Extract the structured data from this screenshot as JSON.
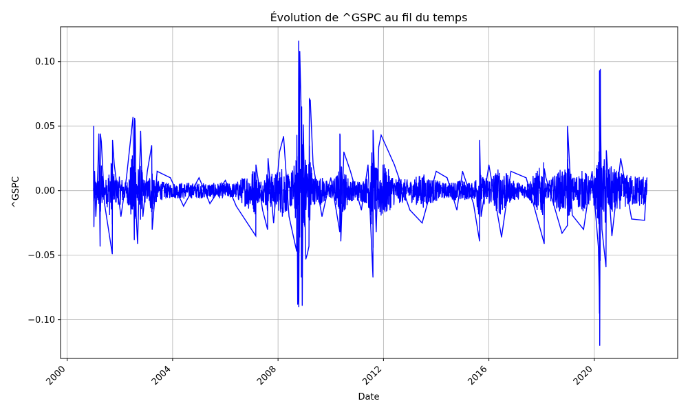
{
  "chart_data": {
    "type": "line",
    "title": "Évolution de ^GSPC au fil du temps",
    "xlabel": "Date",
    "ylabel": "^GSPC",
    "xlim": [
      "1999-10-01",
      "2023-03-01"
    ],
    "ylim": [
      -0.13,
      0.127
    ],
    "grid": true,
    "legend": "none",
    "x_ticks": [
      {
        "value": "2000-01-01",
        "label": "2000"
      },
      {
        "value": "2004-01-01",
        "label": "2004"
      },
      {
        "value": "2008-01-01",
        "label": "2008"
      },
      {
        "value": "2012-01-01",
        "label": "2012"
      },
      {
        "value": "2016-01-01",
        "label": "2016"
      },
      {
        "value": "2020-01-01",
        "label": "2020"
      }
    ],
    "y_ticks": [
      {
        "value": 0.1,
        "label": "0.10"
      },
      {
        "value": 0.05,
        "label": "0.05"
      },
      {
        "value": 0.0,
        "label": "0.00"
      },
      {
        "value": -0.05,
        "label": "−0.05"
      },
      {
        "value": -0.1,
        "label": "−0.10"
      }
    ],
    "series": [
      {
        "color": "#0000ff",
        "x": [
          "2001-01-01",
          "2001-01-03",
          "2001-01-05",
          "2001-01-15",
          "2001-02-01",
          "2001-03-01",
          "2001-03-15",
          "2001-04-01",
          "2001-04-05",
          "2001-04-18",
          "2001-06-01",
          "2001-09-17",
          "2001-09-21",
          "2001-10-15",
          "2002-01-15",
          "2002-04-01",
          "2002-07-01",
          "2002-07-19",
          "2002-07-24",
          "2002-07-29",
          "2002-08-06",
          "2002-08-15",
          "2002-09-03",
          "2002-10-01",
          "2002-10-10",
          "2002-10-15",
          "2002-11-15",
          "2003-01-15",
          "2003-03-17",
          "2003-03-24",
          "2003-06-01",
          "2003-12-01",
          "2004-06-01",
          "2005-01-01",
          "2005-06-01",
          "2006-01-01",
          "2006-06-01",
          "2007-02-27",
          "2007-03-01",
          "2007-06-01",
          "2007-08-09",
          "2007-08-15",
          "2007-11-01",
          "2008-01-22",
          "2008-03-18",
          "2008-06-01",
          "2008-09-15",
          "2008-09-18",
          "2008-09-29",
          "2008-10-09",
          "2008-10-13",
          "2008-10-15",
          "2008-10-28",
          "2008-11-13",
          "2008-11-20",
          "2008-11-24",
          "2008-12-01",
          "2008-12-16",
          "2009-01-20",
          "2009-02-10",
          "2009-03-05",
          "2009-03-10",
          "2009-03-23",
          "2009-05-01",
          "2009-09-01",
          "2010-01-01",
          "2010-05-06",
          "2010-05-07",
          "2010-05-10",
          "2010-05-20",
          "2010-07-01",
          "2010-10-01",
          "2011-03-01",
          "2011-06-01",
          "2011-08-08",
          "2011-08-09",
          "2011-08-10",
          "2011-08-11",
          "2011-09-22",
          "2011-10-27",
          "2011-11-30",
          "2012-06-01",
          "2013-01-01",
          "2013-06-20",
          "2014-01-01",
          "2014-06-01",
          "2014-10-15",
          "2015-01-01",
          "2015-06-01",
          "2015-08-24",
          "2015-08-26",
          "2015-09-15",
          "2016-01-01",
          "2016-06-24",
          "2016-11-01",
          "2017-06-01",
          "2018-02-05",
          "2018-02-06",
          "2018-03-01",
          "2018-10-10",
          "2018-12-24",
          "2018-12-26",
          "2019-03-01",
          "2019-08-05",
          "2019-12-01",
          "2020-02-27",
          "2020-03-09",
          "2020-03-12",
          "2020-03-13",
          "2020-03-16",
          "2020-03-24",
          "2020-03-26",
          "2020-04-15",
          "2020-06-11",
          "2020-06-15",
          "2020-09-01",
          "2021-01-01",
          "2021-06-01",
          "2021-11-26",
          "2021-12-30"
        ],
        "values": [
          0.0,
          0.05,
          -0.028,
          0.015,
          -0.02,
          0.015,
          0.044,
          -0.043,
          0.044,
          0.038,
          -0.01,
          -0.049,
          0.039,
          0.02,
          -0.02,
          0.01,
          0.057,
          -0.038,
          0.056,
          0.054,
          0.03,
          -0.02,
          -0.041,
          0.02,
          0.034,
          0.046,
          -0.02,
          0.015,
          0.035,
          -0.03,
          0.015,
          0.01,
          -0.012,
          0.01,
          -0.01,
          0.008,
          -0.012,
          -0.035,
          0.02,
          -0.015,
          -0.03,
          0.025,
          -0.025,
          0.03,
          0.042,
          -0.02,
          -0.047,
          0.043,
          -0.088,
          -0.076,
          0.116,
          -0.09,
          0.108,
          0.069,
          -0.067,
          0.065,
          -0.089,
          0.051,
          -0.053,
          -0.049,
          -0.043,
          0.071,
          0.07,
          0.02,
          -0.02,
          0.01,
          -0.032,
          0.044,
          0.043,
          -0.039,
          0.03,
          0.015,
          -0.015,
          0.02,
          -0.067,
          0.047,
          -0.044,
          0.046,
          -0.032,
          0.034,
          0.043,
          0.02,
          -0.015,
          -0.025,
          0.015,
          0.01,
          -0.015,
          0.015,
          -0.01,
          -0.039,
          0.039,
          -0.02,
          0.02,
          -0.036,
          0.015,
          0.01,
          -0.041,
          0.017,
          0.01,
          -0.033,
          -0.027,
          0.05,
          -0.019,
          -0.03,
          0.015,
          -0.044,
          -0.076,
          -0.095,
          0.093,
          -0.12,
          0.094,
          0.062,
          -0.03,
          -0.059,
          0.031,
          -0.035,
          0.025,
          -0.022,
          -0.023,
          0.01
        ]
      }
    ]
  }
}
